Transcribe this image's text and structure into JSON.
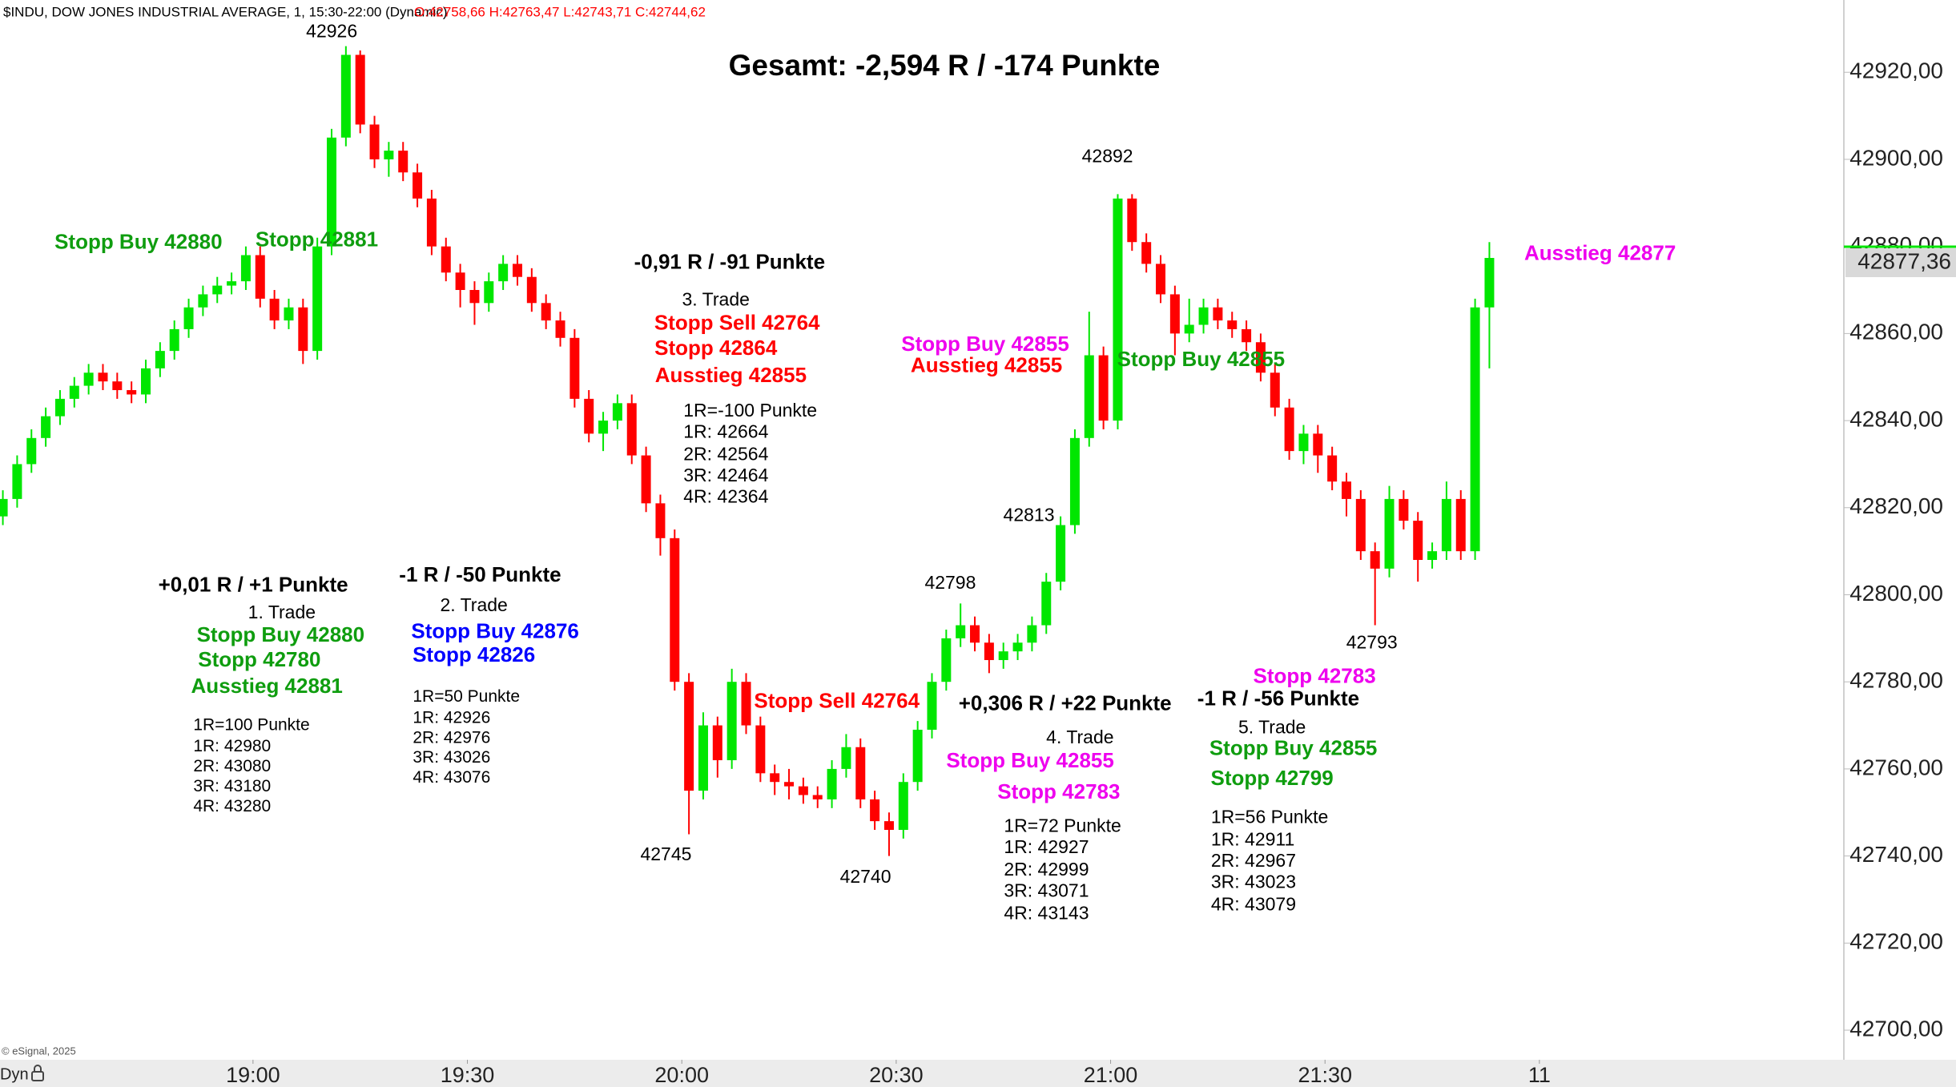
{
  "chart_data": {
    "type": "candlestick",
    "title": "Gesamt: -2,594 R / -174 Punkte",
    "subtitle": "$INDU, DOW JONES INDUSTRIAL AVERAGE, 1, 15:30-22:00 (Dynamic)",
    "ohlc_caption": "O:42758,66 H:42763,47 L:42743,71 C:42744,62",
    "credit": "© eSignal, 2025",
    "mode_label": "Dyn",
    "up_color": "#00e600",
    "down_color": "#ff0000",
    "last_price": {
      "value": 42877.36,
      "label": "42877,36"
    },
    "last_price_color": "#00e600",
    "xlim": [
      1104.6,
      1362.6
    ],
    "ylim": [
      42693.2,
      42936.6
    ],
    "xticks": [
      {
        "value": 1140,
        "label": "19:00"
      },
      {
        "value": 1170,
        "label": "19:30"
      },
      {
        "value": 1200,
        "label": "20:00"
      },
      {
        "value": 1230,
        "label": "20:30"
      },
      {
        "value": 1260,
        "label": "21:00"
      },
      {
        "value": 1290,
        "label": "21:30"
      },
      {
        "value": 1320,
        "label": "11"
      }
    ],
    "yticks": [
      {
        "value": 42700,
        "label": "42700,00"
      },
      {
        "value": 42720,
        "label": "42720,00"
      },
      {
        "value": 42740,
        "label": "42740,00"
      },
      {
        "value": 42760,
        "label": "42760,00"
      },
      {
        "value": 42780,
        "label": "42780,00"
      },
      {
        "value": 42800,
        "label": "42800,00"
      },
      {
        "value": 42820,
        "label": "42820,00"
      },
      {
        "value": 42840,
        "label": "42840,00"
      },
      {
        "value": 42860,
        "label": "42860,00"
      },
      {
        "value": 42880,
        "label": "42880,00"
      },
      {
        "value": 42900,
        "label": "42900,00"
      },
      {
        "value": 42920,
        "label": "42920,00"
      }
    ],
    "x": [
      1105,
      1107,
      1109,
      1111,
      1113,
      1115,
      1117,
      1119,
      1121,
      1123,
      1125,
      1127,
      1129,
      1131,
      1133,
      1135,
      1137,
      1139,
      1141,
      1143,
      1145,
      1147,
      1149,
      1151,
      1153,
      1155,
      1157,
      1159,
      1161,
      1163,
      1165,
      1167,
      1169,
      1171,
      1173,
      1175,
      1177,
      1179,
      1181,
      1183,
      1185,
      1187,
      1189,
      1191,
      1193,
      1195,
      1197,
      1199,
      1201,
      1203,
      1205,
      1207,
      1209,
      1211,
      1213,
      1215,
      1217,
      1219,
      1221,
      1223,
      1225,
      1227,
      1229,
      1231,
      1233,
      1235,
      1237,
      1239,
      1241,
      1243,
      1245,
      1247,
      1249,
      1251,
      1253,
      1255,
      1257,
      1259,
      1261,
      1263,
      1265,
      1267,
      1269,
      1271,
      1273,
      1275,
      1277,
      1279,
      1281,
      1283,
      1285,
      1287,
      1289,
      1291,
      1293,
      1295,
      1297,
      1299,
      1301,
      1303,
      1305,
      1307,
      1309,
      1311,
      1313
    ],
    "ohlc": [
      [
        42818,
        42824,
        42816,
        42822
      ],
      [
        42822,
        42832,
        42820,
        42830
      ],
      [
        42830,
        42838,
        42828,
        42836
      ],
      [
        42836,
        42843,
        42834,
        42841
      ],
      [
        42841,
        42847,
        42839,
        42845
      ],
      [
        42845,
        42850,
        42843,
        42848
      ],
      [
        42848,
        42853,
        42846,
        42851
      ],
      [
        42851,
        42853,
        42847,
        42849
      ],
      [
        42849,
        42851,
        42845,
        42847
      ],
      [
        42847,
        42849,
        42844,
        42846
      ],
      [
        42846,
        42854,
        42844,
        42852
      ],
      [
        42852,
        42858,
        42850,
        42856
      ],
      [
        42856,
        42863,
        42854,
        42861
      ],
      [
        42861,
        42868,
        42859,
        42866
      ],
      [
        42866,
        42871,
        42864,
        42869
      ],
      [
        42869,
        42873,
        42867,
        42871
      ],
      [
        42871,
        42874,
        42869,
        42872
      ],
      [
        42872,
        42880,
        42870,
        42878
      ],
      [
        42878,
        42880,
        42866,
        42868
      ],
      [
        42868,
        42870,
        42861,
        42863
      ],
      [
        42863,
        42868,
        42861,
        42866
      ],
      [
        42866,
        42868,
        42853,
        42856
      ],
      [
        42856,
        42882,
        42854,
        42880
      ],
      [
        42880,
        42907,
        42878,
        42905
      ],
      [
        42905,
        42926,
        42903,
        42924
      ],
      [
        42924,
        42925,
        42906,
        42908
      ],
      [
        42908,
        42910,
        42898,
        42900
      ],
      [
        42900,
        42904,
        42896,
        42902
      ],
      [
        42902,
        42904,
        42895,
        42897
      ],
      [
        42897,
        42899,
        42889,
        42891
      ],
      [
        42891,
        42893,
        42878,
        42880
      ],
      [
        42880,
        42882,
        42872,
        42874
      ],
      [
        42874,
        42876,
        42866,
        42870
      ],
      [
        42870,
        42872,
        42862,
        42867
      ],
      [
        42867,
        42874,
        42865,
        42872
      ],
      [
        42872,
        42878,
        42870,
        42876
      ],
      [
        42876,
        42878,
        42871,
        42873
      ],
      [
        42873,
        42875,
        42865,
        42867
      ],
      [
        42867,
        42869,
        42861,
        42863
      ],
      [
        42863,
        42865,
        42857,
        42859
      ],
      [
        42859,
        42861,
        42843,
        42845
      ],
      [
        42845,
        42847,
        42835,
        42837
      ],
      [
        42837,
        42842,
        42833,
        42840
      ],
      [
        42840,
        42846,
        42838,
        42844
      ],
      [
        42844,
        42846,
        42830,
        42832
      ],
      [
        42832,
        42834,
        42819,
        42821
      ],
      [
        42821,
        42823,
        42809,
        42813
      ],
      [
        42813,
        42815,
        42778,
        42780
      ],
      [
        42780,
        42782,
        42745,
        42755
      ],
      [
        42755,
        42773,
        42753,
        42770
      ],
      [
        42770,
        42772,
        42758,
        42762
      ],
      [
        42762,
        42783,
        42760,
        42780
      ],
      [
        42780,
        42782,
        42768,
        42770
      ],
      [
        42770,
        42772,
        42757,
        42759
      ],
      [
        42759,
        42761,
        42754,
        42757
      ],
      [
        42757,
        42760,
        42753,
        42756
      ],
      [
        42756,
        42758,
        42752,
        42754
      ],
      [
        42754,
        42756,
        42751,
        42753
      ],
      [
        42753,
        42762,
        42751,
        42760
      ],
      [
        42760,
        42768,
        42758,
        42765
      ],
      [
        42765,
        42767,
        42751,
        42753
      ],
      [
        42753,
        42755,
        42746,
        42748
      ],
      [
        42748,
        42750,
        42740,
        42746
      ],
      [
        42746,
        42759,
        42744,
        42757
      ],
      [
        42757,
        42771,
        42755,
        42769
      ],
      [
        42769,
        42782,
        42767,
        42780
      ],
      [
        42780,
        42792,
        42778,
        42790
      ],
      [
        42790,
        42798,
        42788,
        42793
      ],
      [
        42793,
        42795,
        42787,
        42789
      ],
      [
        42789,
        42791,
        42782,
        42785
      ],
      [
        42785,
        42789,
        42783,
        42787
      ],
      [
        42787,
        42791,
        42785,
        42789
      ],
      [
        42789,
        42795,
        42787,
        42793
      ],
      [
        42793,
        42805,
        42791,
        42803
      ],
      [
        42803,
        42818,
        42801,
        42816
      ],
      [
        42816,
        42838,
        42814,
        42836
      ],
      [
        42836,
        42865,
        42834,
        42855
      ],
      [
        42855,
        42857,
        42838,
        42840
      ],
      [
        42840,
        42892,
        42838,
        42891
      ],
      [
        42891,
        42892,
        42879,
        42881
      ],
      [
        42881,
        42883,
        42874,
        42876
      ],
      [
        42876,
        42878,
        42867,
        42869
      ],
      [
        42869,
        42871,
        42855,
        42860
      ],
      [
        42860,
        42868,
        42858,
        42862
      ],
      [
        42862,
        42868,
        42860,
        42866
      ],
      [
        42866,
        42868,
        42861,
        42863
      ],
      [
        42863,
        42865,
        42859,
        42861
      ],
      [
        42861,
        42863,
        42856,
        42858
      ],
      [
        42858,
        42860,
        42849,
        42851
      ],
      [
        42851,
        42853,
        42841,
        42843
      ],
      [
        42843,
        42845,
        42831,
        42833
      ],
      [
        42833,
        42839,
        42830,
        42837
      ],
      [
        42837,
        42839,
        42828,
        42832
      ],
      [
        42832,
        42834,
        42824,
        42826
      ],
      [
        42826,
        42828,
        42818,
        42822
      ],
      [
        42822,
        42824,
        42808,
        42810
      ],
      [
        42810,
        42812,
        42793,
        42806
      ],
      [
        42806,
        42825,
        42804,
        42822
      ],
      [
        42822,
        42824,
        42815,
        42817
      ],
      [
        42817,
        42819,
        42803,
        42808
      ],
      [
        42808,
        42812,
        42806,
        42810
      ],
      [
        42810,
        42826,
        42808,
        42822
      ],
      [
        42822,
        42824,
        42808,
        42810
      ],
      [
        42810,
        42868,
        42808,
        42866
      ],
      [
        42866,
        42881,
        42852,
        42877.36
      ]
    ],
    "annotations": [
      {
        "text": "42926",
        "color": "#000000"
      },
      {
        "text": "Stopp Buy 42880",
        "color": "#0f9d0f"
      },
      {
        "text": "Stopp 42881",
        "color": "#0f9d0f"
      },
      {
        "text": "-0,91 R / -91 Punkte",
        "color": "#000000"
      },
      {
        "text": "3. Trade",
        "color": "#000000"
      },
      {
        "text": "Stopp Sell 42764",
        "color": "#ff0000"
      },
      {
        "text": "Stopp 42864",
        "color": "#ff0000"
      },
      {
        "text": "Ausstieg 42855",
        "color": "#ff0000"
      },
      {
        "text": "1R=-100 Punkte",
        "color": "#000000"
      },
      {
        "text": "1R: 42664",
        "color": "#000000"
      },
      {
        "text": "2R: 42564",
        "color": "#000000"
      },
      {
        "text": "3R: 42464",
        "color": "#000000"
      },
      {
        "text": "4R: 42364",
        "color": "#000000"
      },
      {
        "text": "42892",
        "color": "#000000"
      },
      {
        "text": "Stopp Buy 42855",
        "color": "#ee00ee"
      },
      {
        "text": "Ausstieg 42855",
        "color": "#ff0000"
      },
      {
        "text": "Stopp Buy 42855",
        "color": "#0f9d0f"
      },
      {
        "text": "Ausstieg 42877",
        "color": "#ee00ee"
      },
      {
        "text": "42813",
        "color": "#000000"
      },
      {
        "text": "42798",
        "color": "#000000"
      },
      {
        "text": "+0,01 R / +1 Punkte",
        "color": "#000000"
      },
      {
        "text": "1. Trade",
        "color": "#000000"
      },
      {
        "text": "Stopp Buy 42880",
        "color": "#0f9d0f"
      },
      {
        "text": "Stopp 42780",
        "color": "#0f9d0f"
      },
      {
        "text": "Ausstieg 42881",
        "color": "#0f9d0f"
      },
      {
        "text": "1R=100 Punkte",
        "color": "#000000"
      },
      {
        "text": "1R: 42980",
        "color": "#000000"
      },
      {
        "text": "2R: 43080",
        "color": "#000000"
      },
      {
        "text": "3R: 43180",
        "color": "#000000"
      },
      {
        "text": "4R: 43280",
        "color": "#000000"
      },
      {
        "text": "-1 R / -50 Punkte",
        "color": "#000000"
      },
      {
        "text": "2. Trade",
        "color": "#000000"
      },
      {
        "text": "Stopp Buy 42876",
        "color": "#0000ff"
      },
      {
        "text": "Stopp 42826",
        "color": "#0000ff"
      },
      {
        "text": "1R=50 Punkte",
        "color": "#000000"
      },
      {
        "text": "1R: 42926",
        "color": "#000000"
      },
      {
        "text": "2R: 42976",
        "color": "#000000"
      },
      {
        "text": "3R: 43026",
        "color": "#000000"
      },
      {
        "text": "4R: 43076",
        "color": "#000000"
      },
      {
        "text": "Stopp Sell 42764",
        "color": "#ff0000"
      },
      {
        "text": "42745",
        "color": "#000000"
      },
      {
        "text": "42740",
        "color": "#000000"
      },
      {
        "text": "+0,306 R / +22 Punkte",
        "color": "#000000"
      },
      {
        "text": "4. Trade",
        "color": "#000000"
      },
      {
        "text": "Stopp Buy 42855",
        "color": "#ee00ee"
      },
      {
        "text": "Stopp 42783",
        "color": "#ee00ee"
      },
      {
        "text": "1R=72 Punkte",
        "color": "#000000"
      },
      {
        "text": "1R: 42927",
        "color": "#000000"
      },
      {
        "text": "2R: 42999",
        "color": "#000000"
      },
      {
        "text": "3R: 43071",
        "color": "#000000"
      },
      {
        "text": "4R: 43143",
        "color": "#000000"
      },
      {
        "text": "Stopp 42783",
        "color": "#ee00ee"
      },
      {
        "text": "-1 R / -56 Punkte",
        "color": "#000000"
      },
      {
        "text": "5. Trade",
        "color": "#000000"
      },
      {
        "text": "Stopp Buy 42855",
        "color": "#0f9d0f"
      },
      {
        "text": "Stopp 42799",
        "color": "#0f9d0f"
      },
      {
        "text": "1R=56 Punkte",
        "color": "#000000"
      },
      {
        "text": "1R: 42911",
        "color": "#000000"
      },
      {
        "text": "2R: 42967",
        "color": "#000000"
      },
      {
        "text": "3R: 43023",
        "color": "#000000"
      },
      {
        "text": "4R: 43079",
        "color": "#000000"
      },
      {
        "text": "42793",
        "color": "#000000"
      }
    ]
  }
}
